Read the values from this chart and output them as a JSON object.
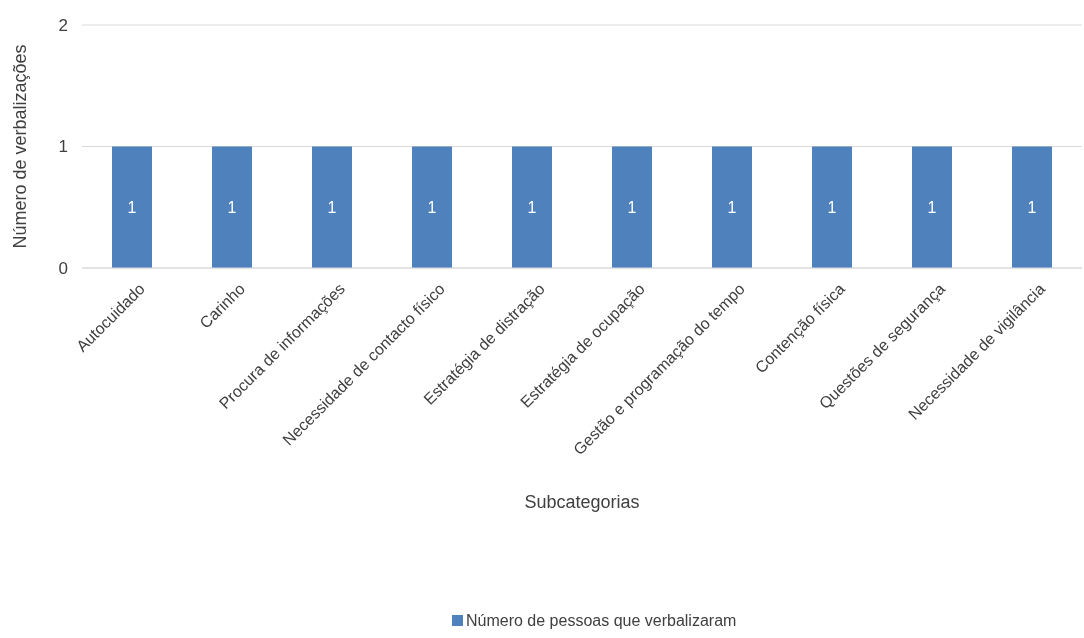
{
  "chart_data": {
    "type": "bar",
    "xlabel": "Subcategorias",
    "ylabel": "Número de verbalizações",
    "categories": [
      "Autocuidado",
      "Carinho",
      "Procura de informações",
      "Necessidade de contacto físico",
      "Estratégia de distração",
      "Estratégia de ocupação",
      "Gestão e programação do tempo",
      "Contenção física",
      "Questões de segurança",
      "Necessidade de vigilância"
    ],
    "series": [
      {
        "name": "Número de pessoas que verbalizaram",
        "color": "#4f81bd",
        "values": [
          1,
          1,
          1,
          1,
          1,
          1,
          1,
          1,
          1,
          1
        ]
      }
    ],
    "ylim": [
      0,
      2
    ],
    "yticks": [
      0,
      1,
      2
    ],
    "grid": "y",
    "legend": "bottom",
    "data_labels": true
  }
}
